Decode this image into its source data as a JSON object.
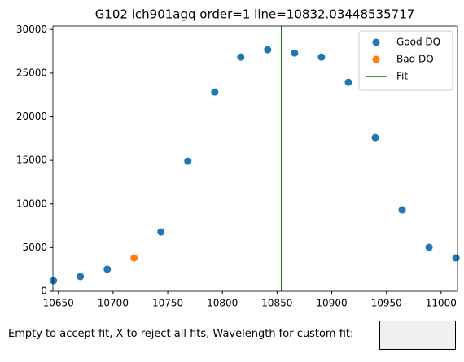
{
  "chart_data": {
    "type": "scatter",
    "title": "G102 ich901agq order=1 line=10832.03448535717",
    "series": [
      {
        "name": "Good DQ",
        "color": "#1f77b4",
        "x": [
          10645.5,
          10670.1,
          10694.7,
          10743.8,
          10768.4,
          10793,
          10816.8,
          10841.4,
          10866,
          10890.6,
          10915.2,
          10939.8,
          10964.4,
          10989,
          11013.6
        ],
        "values": [
          1210,
          1680,
          2520,
          6800,
          14910,
          22830,
          26840,
          27680,
          27300,
          26840,
          23950,
          17610,
          9320,
          5030,
          3820
        ]
      },
      {
        "name": "Bad DQ",
        "color": "#ff7f0e",
        "x": [
          10719.2
        ],
        "values": [
          3820
        ]
      }
    ],
    "fit": {
      "name": "Fit",
      "color": "#008000",
      "value": 10854
    },
    "xlim": [
      10645,
      11015
    ],
    "ylim": [
      0,
      30400
    ],
    "xticks": [
      10650,
      10700,
      10750,
      10800,
      10850,
      10900,
      10950,
      11000
    ],
    "yticks": [
      0,
      5000,
      10000,
      15000,
      20000,
      25000,
      30000
    ],
    "legend": "upper right"
  },
  "prompt": {
    "label": "Empty to accept fit, X to reject all fits, Wavelength for custom fit:"
  }
}
